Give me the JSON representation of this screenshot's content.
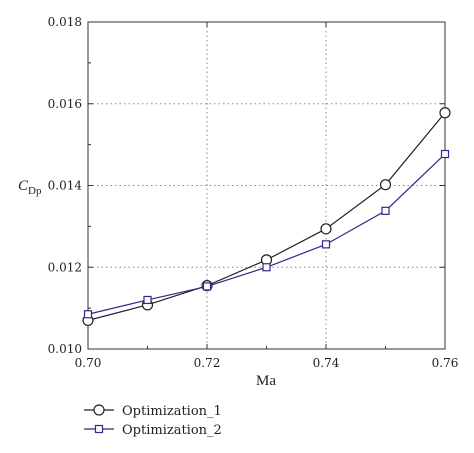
{
  "chart_data": {
    "type": "line",
    "x": [
      0.7,
      0.71,
      0.72,
      0.73,
      0.74,
      0.75,
      0.76
    ],
    "series": [
      {
        "name": "Optimization_1",
        "values": [
          0.0107,
          0.01108,
          0.01155,
          0.01218,
          0.01294,
          0.01402,
          0.01578
        ],
        "color": "#222222",
        "marker": "circle"
      },
      {
        "name": "Optimization_2",
        "values": [
          0.01085,
          0.0112,
          0.01153,
          0.012,
          0.01256,
          0.01338,
          0.01477
        ],
        "color": "#2d2a8a",
        "marker": "square"
      }
    ],
    "xlabel": "Ma",
    "ylabel": "C",
    "ylabel_sub": "Dp",
    "xlim": [
      0.7,
      0.76
    ],
    "ylim": [
      0.01,
      0.018
    ],
    "xticks": [
      "0.70",
      "0.72",
      "0.74",
      "0.76"
    ],
    "yticks": [
      "0.010",
      "0.012",
      "0.014",
      "0.016",
      "0.018"
    ],
    "grid": "dotted, major ticks",
    "legend": "bottom-left, below plot"
  }
}
